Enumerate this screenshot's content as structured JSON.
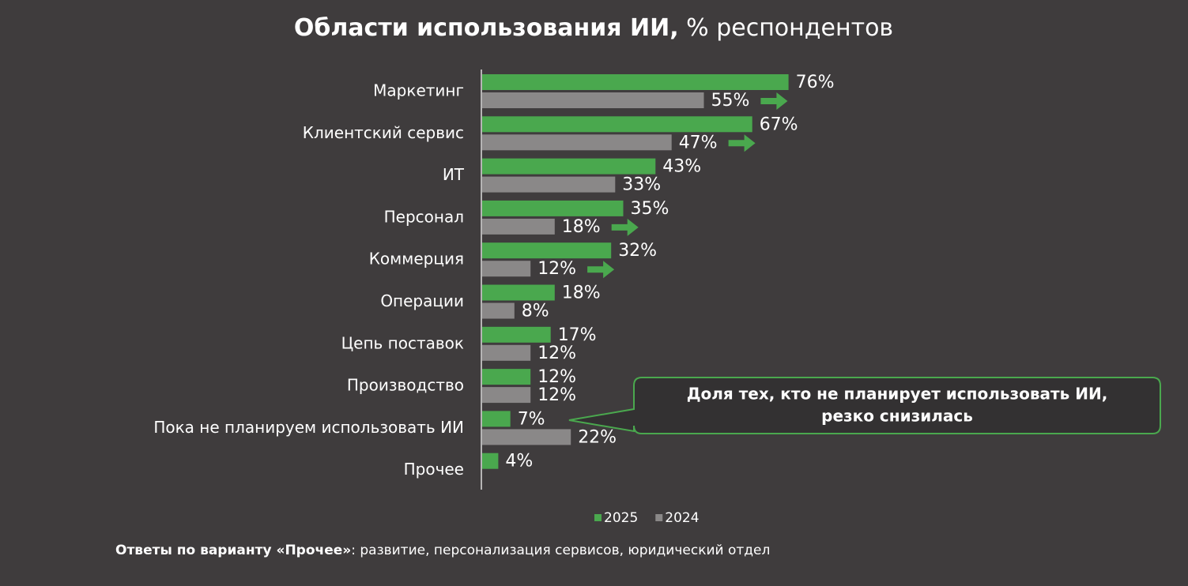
{
  "chart_data": {
    "type": "hbar",
    "title": "Области использования ИИ,",
    "subtitle": "% респондентов",
    "categories": [
      "Маркетинг",
      "Клиентский сервис",
      "ИТ",
      "Персонал",
      "Коммерция",
      "Операции",
      "Цепь поставок",
      "Производство",
      "Пока не планируем использовать ИИ",
      "Прочее"
    ],
    "series": [
      {
        "name": "2025",
        "color": "#4aa84e",
        "values": [
          76,
          67,
          43,
          35,
          32,
          18,
          17,
          12,
          7,
          4
        ],
        "value_labels": [
          "76%",
          "67%",
          "43%",
          "35%",
          "32%",
          "18%",
          "17%",
          "12%",
          "7%",
          "4%"
        ]
      },
      {
        "name": "2024",
        "color": "#8a8888",
        "values": [
          55,
          47,
          33,
          18,
          12,
          8,
          12,
          12,
          22,
          null
        ],
        "value_labels": [
          "55%",
          "47%",
          "33%",
          "18%",
          "12%",
          "8%",
          "12%",
          "12%",
          "22%",
          null
        ]
      }
    ],
    "xlim": [
      0,
      100
    ],
    "annotation": [
      "Доля тех, кто не планирует использовать ИИ,",
      "резко снизилась"
    ],
    "note_label": "Ответы по варианту «Прочее»",
    "note_text": ": развитие, персонализация сервисов, юридический отдел"
  }
}
